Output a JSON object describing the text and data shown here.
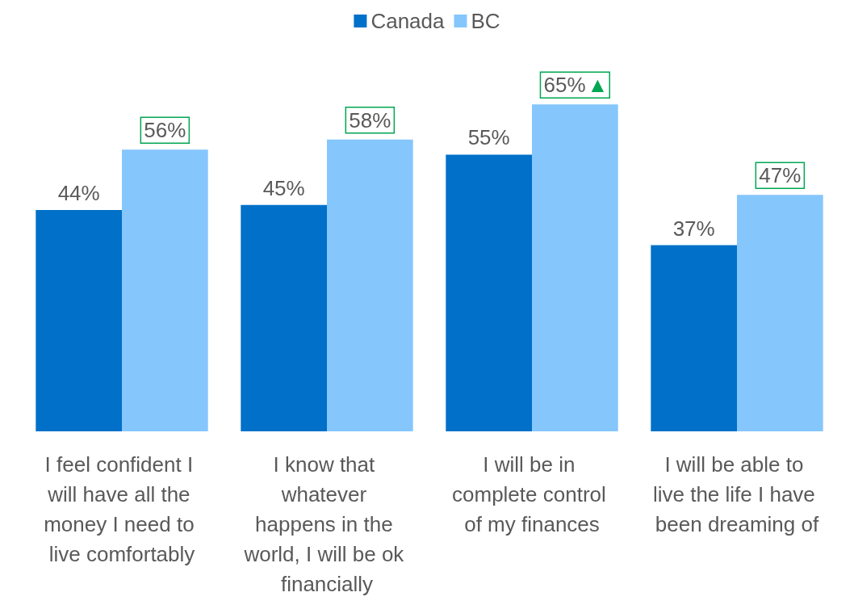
{
  "chart_data": {
    "type": "bar",
    "categories": [
      "I feel confident I will have all the money I need to live comfortably",
      "I know that whatever happens in the world, I will be ok financially",
      "I will be in complete control of my finances",
      "I will be able to live the life I have been dreaming of"
    ],
    "series": [
      {
        "name": "Canada",
        "color": "#0070c8",
        "values": [
          44,
          45,
          55,
          37
        ],
        "value_labels": [
          "44%",
          "45%",
          "55%",
          "37%"
        ]
      },
      {
        "name": "BC",
        "color": "#85c6fd",
        "values": [
          56,
          58,
          65,
          47
        ],
        "value_labels": [
          "56%",
          "58%",
          "65%▲",
          "47%"
        ]
      }
    ],
    "legend": "top"
  }
}
